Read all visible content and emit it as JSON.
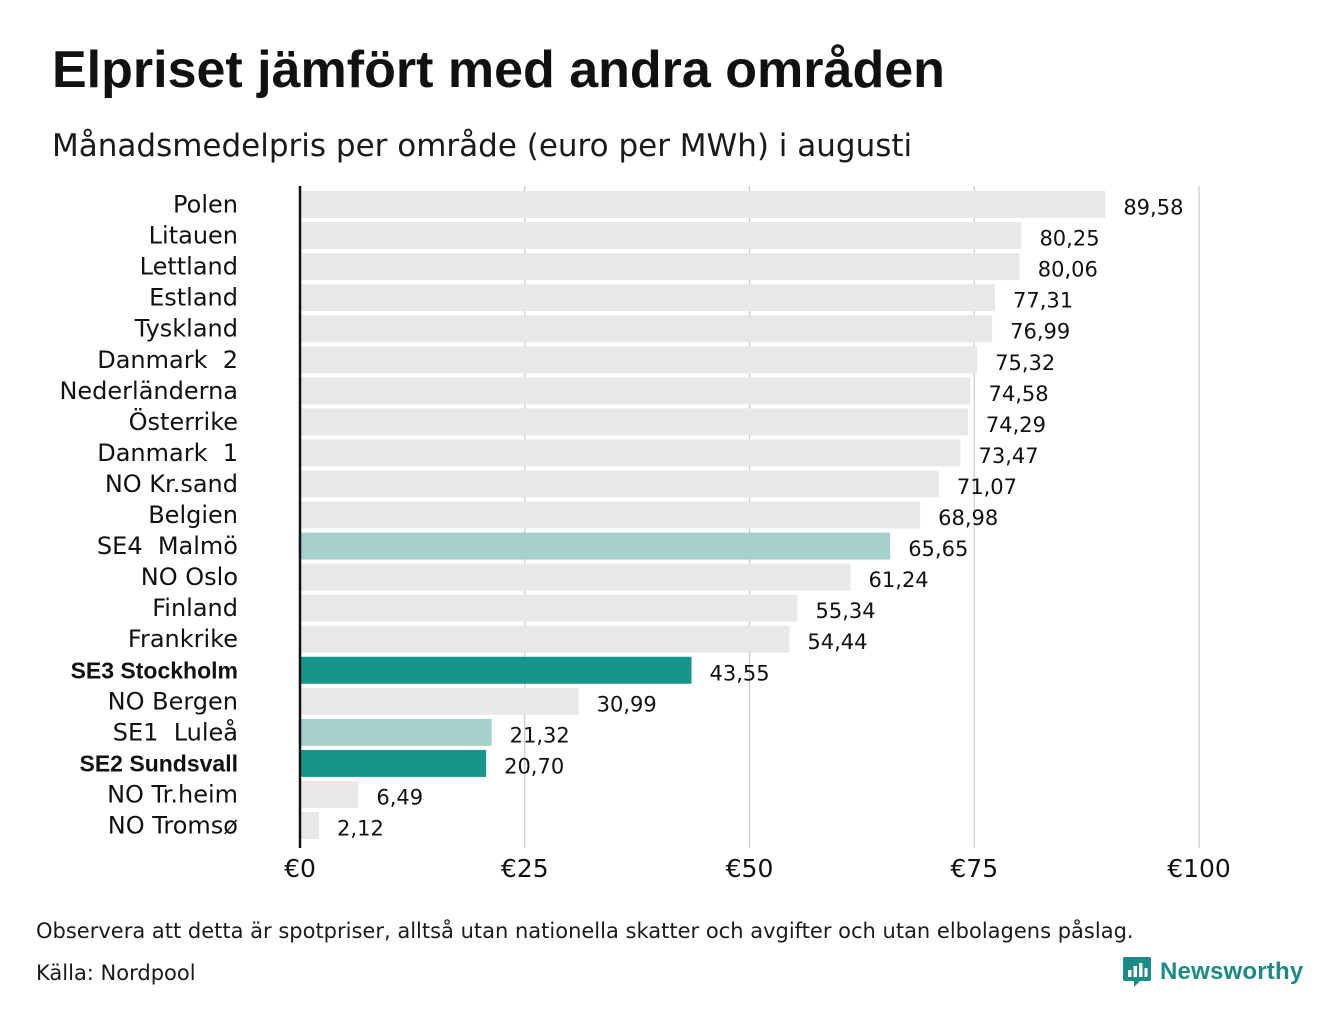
{
  "header": {
    "title": "Elpriset jämfört med andra områden",
    "subtitle": "Månadsmedelpris per område (euro per MWh) i augusti"
  },
  "footer": {
    "note": "Observera att detta är spotpriser, alltså utan nationella skatter och avgifter och utan elbolagens påslag.",
    "source": "Källa: Nordpool",
    "brand": "Newsworthy",
    "brand_icon": "newsworthy-logo-icon"
  },
  "colors": {
    "bar_default": "#e8e8e8",
    "bar_light_teal": "#a6d1cb",
    "bar_dark_teal": "#16968a",
    "grid": "#c9c9d6",
    "axis": "#111111",
    "brand": "#1a8c85"
  },
  "chart_data": {
    "type": "bar",
    "orientation": "horizontal",
    "title": "Elpriset jämfört med andra områden",
    "subtitle": "Månadsmedelpris per område (euro per MWh) i augusti",
    "xlim": [
      0,
      100
    ],
    "x_ticks": [
      {
        "value": 0,
        "label": "€0"
      },
      {
        "value": 25,
        "label": "€25"
      },
      {
        "value": 50,
        "label": "€50"
      },
      {
        "value": 75,
        "label": "€75"
      },
      {
        "value": 100,
        "label": "€100"
      }
    ],
    "grid": true,
    "categories": [
      "Polen",
      "Litauen",
      "Lettland",
      "Estland",
      "Tyskland",
      "Danmark  2",
      "Nederländerna",
      "Österrike",
      "Danmark  1",
      "NO Kr.sand",
      "Belgien",
      "SE4  Malmö",
      "NO Oslo",
      "Finland",
      "Frankrike",
      "SE3 Stockholm",
      "NO Bergen",
      "SE1  Luleå",
      "SE2 Sundsvall",
      "NO Tr.heim",
      "NO Tromsø"
    ],
    "values": [
      89.58,
      80.25,
      80.06,
      77.31,
      76.99,
      75.32,
      74.58,
      74.29,
      73.47,
      71.07,
      68.98,
      65.65,
      61.24,
      55.34,
      54.44,
      43.55,
      30.99,
      21.32,
      20.7,
      6.49,
      2.12
    ],
    "value_labels": [
      "89,58",
      "80,25",
      "80,06",
      "77,31",
      "76,99",
      "75,32",
      "74,58",
      "74,29",
      "73,47",
      "71,07",
      "68,98",
      "65,65",
      "61,24",
      "55,34",
      "54,44",
      "43,55",
      "30,99",
      "21,32",
      "20,70",
      "6,49",
      "2,12"
    ],
    "highlight": [
      "default",
      "default",
      "default",
      "default",
      "default",
      "default",
      "default",
      "default",
      "default",
      "default",
      "default",
      "light",
      "default",
      "default",
      "default",
      "dark",
      "default",
      "light",
      "dark",
      "default",
      "default"
    ],
    "bold_labels": [
      false,
      false,
      false,
      false,
      false,
      false,
      false,
      false,
      false,
      false,
      false,
      false,
      false,
      false,
      false,
      true,
      false,
      false,
      true,
      false,
      false
    ]
  }
}
